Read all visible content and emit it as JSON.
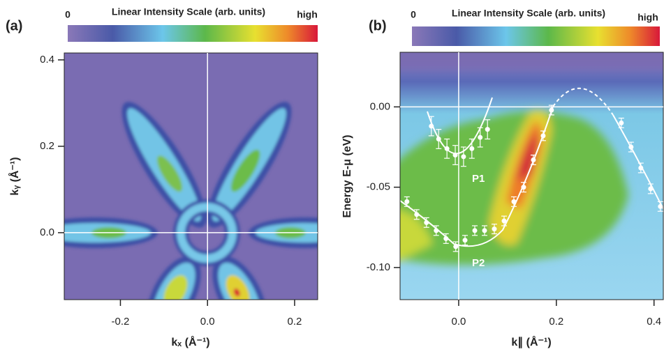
{
  "chart_data": [
    {
      "type": "heatmap",
      "panel": "(a)",
      "colorbar": {
        "title": "Linear Intensity Scale (arb. units)",
        "low": "0",
        "high": "high"
      },
      "xlabel": "kₓ (Å⁻¹)",
      "ylabel": "kᵧ (Å⁻¹)",
      "xlim": [
        -0.329,
        0.253
      ],
      "ylim": [
        -0.155,
        0.416
      ],
      "xticks": [
        -0.2,
        {
          "value": 0,
          "label": "0.0"
        },
        0.2
      ],
      "yticks": [
        {
          "value": 0,
          "label": "0.0"
        },
        0.2,
        0.4
      ]
    },
    {
      "type": "heatmap",
      "panel": "(b)",
      "colorbar": {
        "title": "Linear Intensity Scale (arb. units)",
        "low": "0",
        "high": "high"
      },
      "xlabel": "k∥ (Å⁻¹)",
      "ylabel": "Energy E-μ (eV)",
      "xlim": [
        -0.12,
        0.419
      ],
      "ylim": [
        -0.12,
        0.034
      ],
      "xticks": [
        {
          "value": 0,
          "label": "0.0"
        },
        0.2,
        0.4
      ],
      "yticks": [
        {
          "value": 0,
          "label": "0.00"
        },
        -0.05,
        {
          "value": -0.1,
          "label": "-0.10"
        }
      ],
      "series": [
        {
          "name": "P1",
          "color": "#ffffff",
          "x": [
            -0.056,
            -0.041,
            -0.024,
            -0.007,
            0.01,
            0.027,
            0.044,
            0.059
          ],
          "values": [
            -0.012,
            -0.02,
            -0.026,
            -0.03,
            -0.031,
            -0.026,
            -0.019,
            -0.014
          ],
          "errors": [
            0.006,
            0.006,
            0.006,
            0.006,
            0.006,
            0.006,
            0.006,
            0.006
          ]
        },
        {
          "name": "P2",
          "color": "#ffffff",
          "x": [
            -0.106,
            -0.086,
            -0.066,
            -0.046,
            -0.026,
            -0.006,
            0.013,
            0.033,
            0.053,
            0.073,
            0.093,
            0.113,
            0.133,
            0.153,
            0.173,
            0.19,
            0.333,
            0.353,
            0.373,
            0.393,
            0.413
          ],
          "values": [
            -0.059,
            -0.067,
            -0.072,
            -0.077,
            -0.082,
            -0.087,
            -0.083,
            -0.077,
            -0.077,
            -0.076,
            -0.071,
            -0.059,
            -0.05,
            -0.033,
            -0.018,
            -0.002,
            -0.01,
            -0.025,
            -0.038,
            -0.051,
            -0.062
          ],
          "errors": [
            0.003,
            0.003,
            0.003,
            0.003,
            0.003,
            0.003,
            0.003,
            0.003,
            0.003,
            0.003,
            0.003,
            0.003,
            0.003,
            0.003,
            0.003,
            0.003,
            0.003,
            0.003,
            0.003,
            0.003,
            0.003
          ]
        }
      ]
    }
  ]
}
